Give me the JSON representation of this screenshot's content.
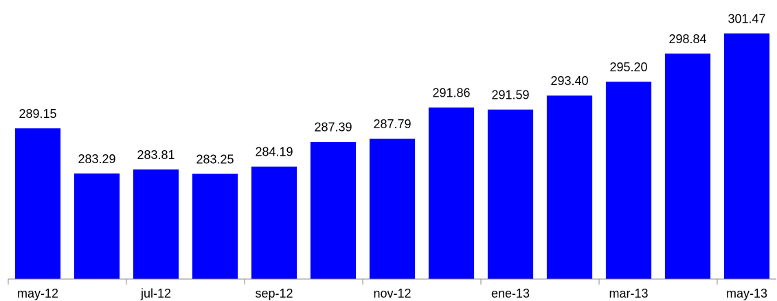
{
  "chart_data": {
    "type": "bar",
    "categories": [
      "may-12",
      null,
      "jul-12",
      null,
      "sep-12",
      null,
      "nov-12",
      null,
      "ene-13",
      null,
      "mar-13",
      null,
      "may-13"
    ],
    "values": [
      289.15,
      283.29,
      283.81,
      283.25,
      284.19,
      287.39,
      287.79,
      291.86,
      291.59,
      293.4,
      295.2,
      298.84,
      301.47
    ],
    "value_labels": [
      "289.15",
      "283.29",
      "283.81",
      "283.25",
      "284.19",
      "287.39",
      "287.79",
      "291.86",
      "291.59",
      "293.40",
      "295.20",
      "298.84",
      "301.47"
    ],
    "color": "#0000ff",
    "ylim": [
      269.6,
      305.8
    ]
  }
}
